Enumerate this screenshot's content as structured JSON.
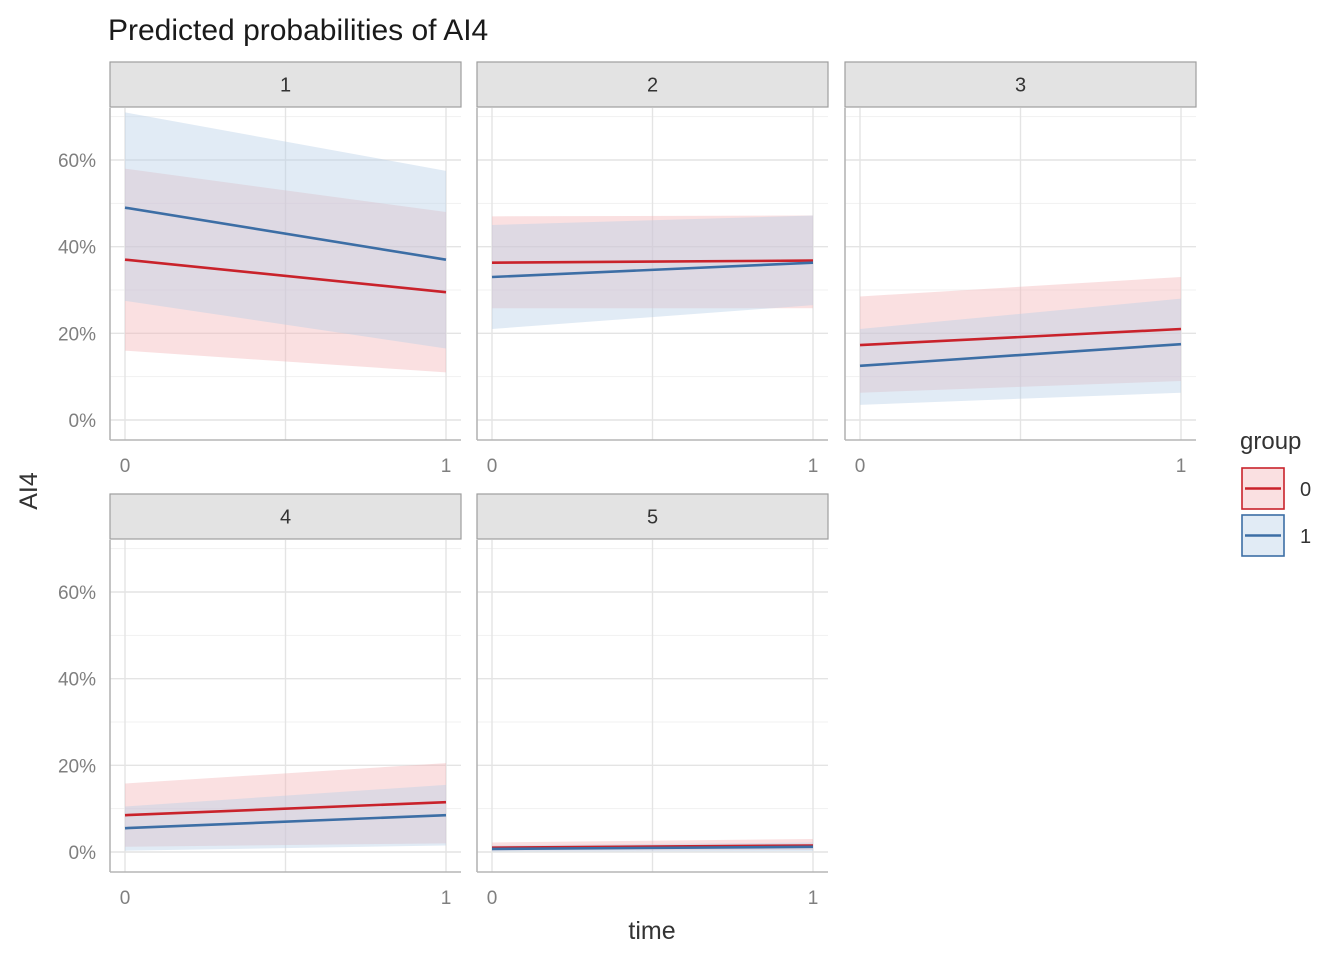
{
  "chart_data": {
    "type": "line",
    "title": "Predicted probabilities of AI4",
    "xlabel": "time",
    "ylabel": "AI4",
    "x": [
      0,
      1
    ],
    "x_ticks": [
      "0",
      "1"
    ],
    "y_ticks": [
      "0%",
      "20%",
      "40%",
      "60%"
    ],
    "ylim": [
      0,
      0.72
    ],
    "grid": true,
    "legend": {
      "title": "group",
      "position": "right",
      "items": [
        {
          "label": "0",
          "color": "#c9222b",
          "fill": "#f4b4b8"
        },
        {
          "label": "1",
          "color": "#3c6ea5",
          "fill": "#b8cfe6"
        }
      ]
    },
    "facets": [
      {
        "label": "1",
        "series": [
          {
            "group": "0",
            "y": [
              0.37,
              0.295
            ],
            "lower": [
              0.16,
              0.11
            ],
            "upper": [
              0.58,
              0.48
            ]
          },
          {
            "group": "1",
            "y": [
              0.49,
              0.37
            ],
            "lower": [
              0.275,
              0.165
            ],
            "upper": [
              0.71,
              0.575
            ]
          }
        ]
      },
      {
        "label": "2",
        "series": [
          {
            "group": "0",
            "y": [
              0.363,
              0.368
            ],
            "lower": [
              0.258,
              0.258
            ],
            "upper": [
              0.47,
              0.472
            ]
          },
          {
            "group": "1",
            "y": [
              0.33,
              0.363
            ],
            "lower": [
              0.21,
              0.265
            ],
            "upper": [
              0.45,
              0.472
            ]
          }
        ]
      },
      {
        "label": "3",
        "series": [
          {
            "group": "0",
            "y": [
              0.173,
              0.21
            ],
            "lower": [
              0.063,
              0.09
            ],
            "upper": [
              0.285,
              0.33
            ]
          },
          {
            "group": "1",
            "y": [
              0.125,
              0.175
            ],
            "lower": [
              0.035,
              0.063
            ],
            "upper": [
              0.21,
              0.28
            ]
          }
        ]
      },
      {
        "label": "4",
        "series": [
          {
            "group": "0",
            "y": [
              0.085,
              0.115
            ],
            "lower": [
              0.012,
              0.02
            ],
            "upper": [
              0.158,
              0.205
            ]
          },
          {
            "group": "1",
            "y": [
              0.055,
              0.085
            ],
            "lower": [
              0.003,
              0.015
            ],
            "upper": [
              0.105,
              0.155
            ]
          }
        ]
      },
      {
        "label": "5",
        "series": [
          {
            "group": "0",
            "y": [
              0.01,
              0.015
            ],
            "lower": [
              0.003,
              0.005
            ],
            "upper": [
              0.022,
              0.03
            ]
          },
          {
            "group": "1",
            "y": [
              0.007,
              0.012
            ],
            "lower": [
              0.001,
              0.002
            ],
            "upper": [
              0.015,
              0.022
            ]
          }
        ]
      }
    ]
  }
}
